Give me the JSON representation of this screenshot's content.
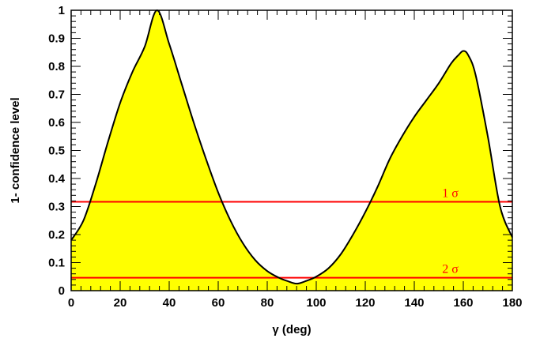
{
  "chart_data": {
    "type": "area",
    "xlabel": "γ (deg)",
    "ylabel": "1- confidence level",
    "xlim": [
      0,
      180
    ],
    "ylim": [
      0,
      1
    ],
    "x_ticks": [
      "0",
      "20",
      "40",
      "60",
      "80",
      "100",
      "120",
      "140",
      "160",
      "180"
    ],
    "y_ticks": [
      "0",
      "0.1",
      "0.2",
      "0.3",
      "0.4",
      "0.5",
      "0.6",
      "0.7",
      "0.8",
      "0.9",
      "1"
    ],
    "grid": false,
    "fill_color": "#ffff00",
    "line_color": "#000000",
    "series": [
      {
        "x": [
          0,
          5,
          10,
          15,
          20,
          25,
          30,
          35,
          40,
          45,
          50,
          55,
          60,
          65,
          70,
          75,
          80,
          85,
          88,
          92,
          96,
          100,
          105,
          110,
          115,
          120,
          125,
          130,
          135,
          140,
          145,
          150,
          155,
          158,
          160,
          162,
          165,
          170,
          175,
          180
        ],
        "y": [
          0.18,
          0.25,
          0.38,
          0.53,
          0.67,
          0.78,
          0.87,
          1.0,
          0.88,
          0.74,
          0.6,
          0.47,
          0.35,
          0.25,
          0.17,
          0.11,
          0.07,
          0.045,
          0.035,
          0.025,
          0.035,
          0.05,
          0.08,
          0.13,
          0.2,
          0.28,
          0.37,
          0.47,
          0.55,
          0.62,
          0.68,
          0.74,
          0.81,
          0.84,
          0.855,
          0.84,
          0.77,
          0.55,
          0.3,
          0.19
        ]
      }
    ],
    "reference_lines": [
      {
        "y": 0.317,
        "label": "1 σ",
        "label_x": 145,
        "color": "#ff0000"
      },
      {
        "y": 0.046,
        "label": "2 σ",
        "label_x": 145,
        "color": "#ff0000"
      }
    ]
  }
}
